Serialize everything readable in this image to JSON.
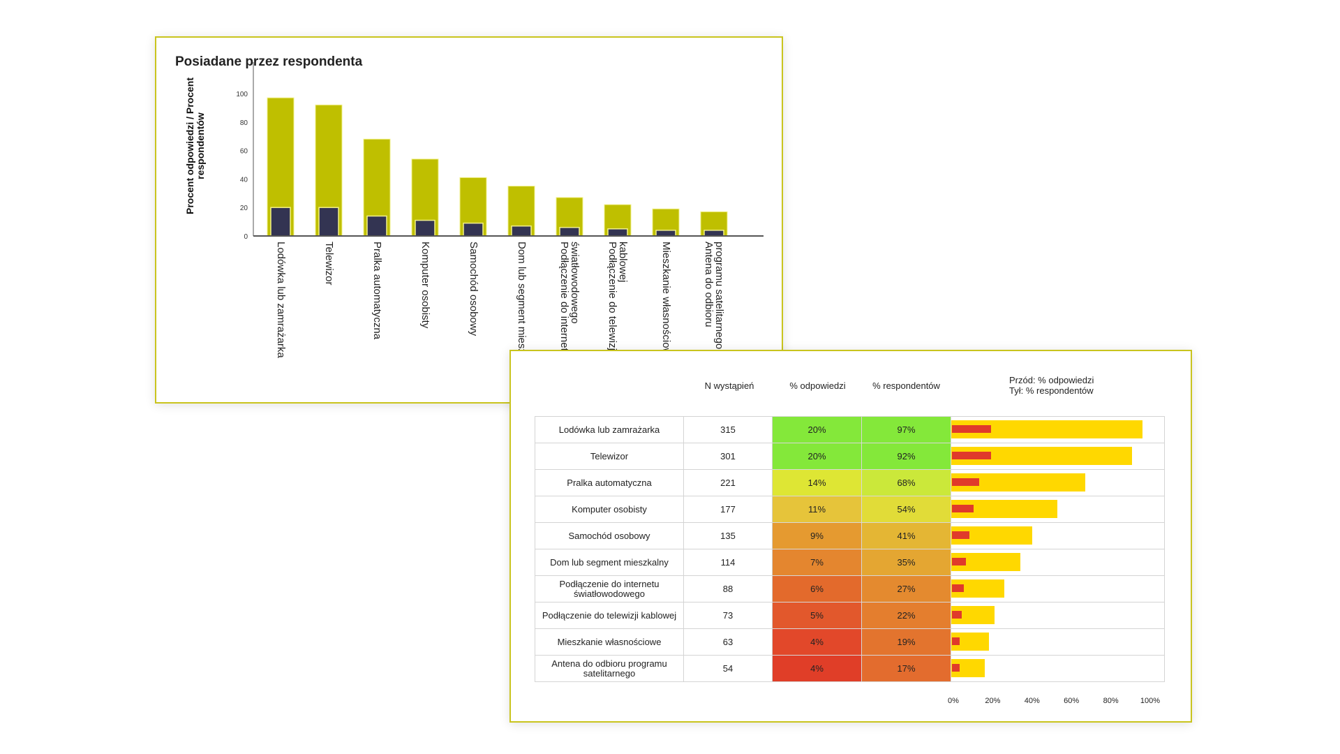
{
  "chart_data": [
    {
      "type": "bar",
      "title": "Posiadane przez respondenta",
      "ylabel": "Procent odpowiedzi / Procent respondentów",
      "ylim": [
        0,
        100
      ],
      "yticks": [
        "0",
        "20",
        "40",
        "60",
        "80",
        "100"
      ],
      "categories": [
        "Lodówka lub zamrażarka",
        "Telewizor",
        "Pralka automatyczna",
        "Komputer osobisty",
        "Samochód osobowy",
        "Dom lub segment mieszkalny",
        "Podłączenie do internetu światłowodowego",
        "Podłączenie do telewizji kablowej",
        "Mieszkanie własnościowe",
        "Antena do odbioru programu satelitarnego"
      ],
      "series": [
        {
          "values": [
            97,
            92,
            68,
            54,
            41,
            35,
            27,
            22,
            19,
            17
          ],
          "color": "#bfbf00"
        },
        {
          "values": [
            20,
            20,
            14,
            11,
            9,
            7,
            6,
            5,
            4,
            4
          ],
          "color": "#333452"
        }
      ],
      "grid": false
    },
    {
      "type": "table",
      "headers": {
        "n": "N wystąpień",
        "pct_resp": "% odpowiedzi",
        "pct_respondents": "% respondentów",
        "legend_front": "Przód: % odpowiedzi",
        "legend_back": "Tył: % respondentów"
      },
      "rows": [
        {
          "label": "Lodówka lub zamrażarka",
          "n": "315",
          "a": "20%",
          "b": "97%",
          "av": 20,
          "bv": 97,
          "ac": "#84e83a",
          "bc": "#84e83a"
        },
        {
          "label": "Telewizor",
          "n": "301",
          "a": "20%",
          "b": "92%",
          "av": 20,
          "bv": 92,
          "ac": "#84e83a",
          "bc": "#84e83a"
        },
        {
          "label": "Pralka automatyczna",
          "n": "221",
          "a": "14%",
          "b": "68%",
          "av": 14,
          "bv": 68,
          "ac": "#dee634",
          "bc": "#cbe83a"
        },
        {
          "label": "Komputer osobisty",
          "n": "177",
          "a": "11%",
          "b": "54%",
          "av": 11,
          "bv": 54,
          "ac": "#e6c43a",
          "bc": "#e1dc38"
        },
        {
          "label": "Samochód osobowy",
          "n": "135",
          "a": "9%",
          "b": "41%",
          "av": 9,
          "bv": 41,
          "ac": "#e59a30",
          "bc": "#e4b634"
        },
        {
          "label": "Dom lub segment mieszkalny",
          "n": "114",
          "a": "7%",
          "b": "35%",
          "av": 7,
          "bv": 35,
          "ac": "#e4862f",
          "bc": "#e4a632"
        },
        {
          "label": "Podłączenie do internetu światłowodowego",
          "n": "88",
          "a": "6%",
          "b": "27%",
          "av": 6,
          "bv": 27,
          "ac": "#e36a2c",
          "bc": "#e48a2f"
        },
        {
          "label": "Podłączenie do telewizji kablowej",
          "n": "73",
          "a": "5%",
          "b": "22%",
          "av": 5,
          "bv": 22,
          "ac": "#e2582c",
          "bc": "#e47e2e"
        },
        {
          "label": "Mieszkanie własnościowe",
          "n": "63",
          "a": "4%",
          "b": "19%",
          "av": 4,
          "bv": 19,
          "ac": "#e2482a",
          "bc": "#e3742e"
        },
        {
          "label": "Antena do odbioru programu satelitarnego",
          "n": "54",
          "a": "4%",
          "b": "17%",
          "av": 4,
          "bv": 17,
          "ac": "#e03e28",
          "bc": "#e36c2e"
        }
      ],
      "xticks": [
        "0%",
        "20%",
        "40%",
        "60%",
        "80%",
        "100%"
      ],
      "bar_colors": {
        "front": "#e03a2b",
        "back": "#ffd800"
      }
    }
  ]
}
